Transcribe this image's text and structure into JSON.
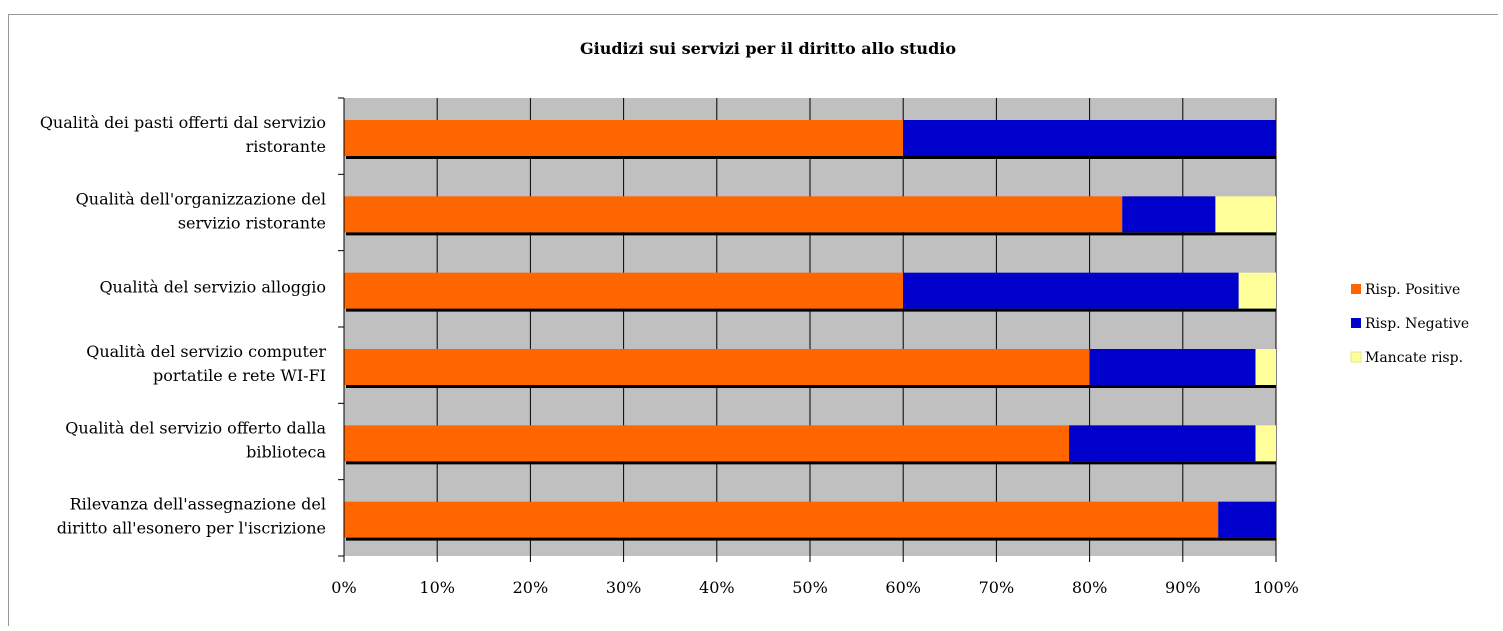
{
  "chart_data": {
    "type": "bar",
    "orientation": "horizontal",
    "stacked": "percent",
    "title": "Giudizi sui servizi per il diritto allo studio",
    "categories": [
      [
        "Qualità dei pasti offerti dal servizio",
        "ristorante"
      ],
      [
        "Qualità dell'organizzazione del",
        "servizio ristorante"
      ],
      [
        "Qualità del servizio alloggio"
      ],
      [
        "Qualità del servizio computer",
        "portatile e rete WI-FI"
      ],
      [
        "Qualità del servizio offerto dalla",
        "biblioteca"
      ],
      [
        "Rilevanza dell'assegnazione del",
        "diritto all'esonero per l'iscrizione"
      ]
    ],
    "series": [
      {
        "name": "Risp. Positive",
        "color": "#ff6600",
        "values": [
          60,
          83.5,
          60,
          80,
          77.8,
          93.8
        ]
      },
      {
        "name": "Risp. Negative",
        "color": "#0000cc",
        "values": [
          40,
          10,
          36,
          17.8,
          20,
          6.2
        ]
      },
      {
        "name": "Mancate risp.",
        "color": "#ffff99",
        "values": [
          0,
          6.5,
          4,
          2.2,
          2.2,
          0
        ]
      }
    ],
    "xlim": [
      0,
      100
    ],
    "xticks": [
      "0%",
      "10%",
      "20%",
      "30%",
      "40%",
      "50%",
      "60%",
      "70%",
      "80%",
      "90%",
      "100%"
    ],
    "plot_background": "#c0c0c0",
    "grid": true,
    "legend_position": "right"
  }
}
